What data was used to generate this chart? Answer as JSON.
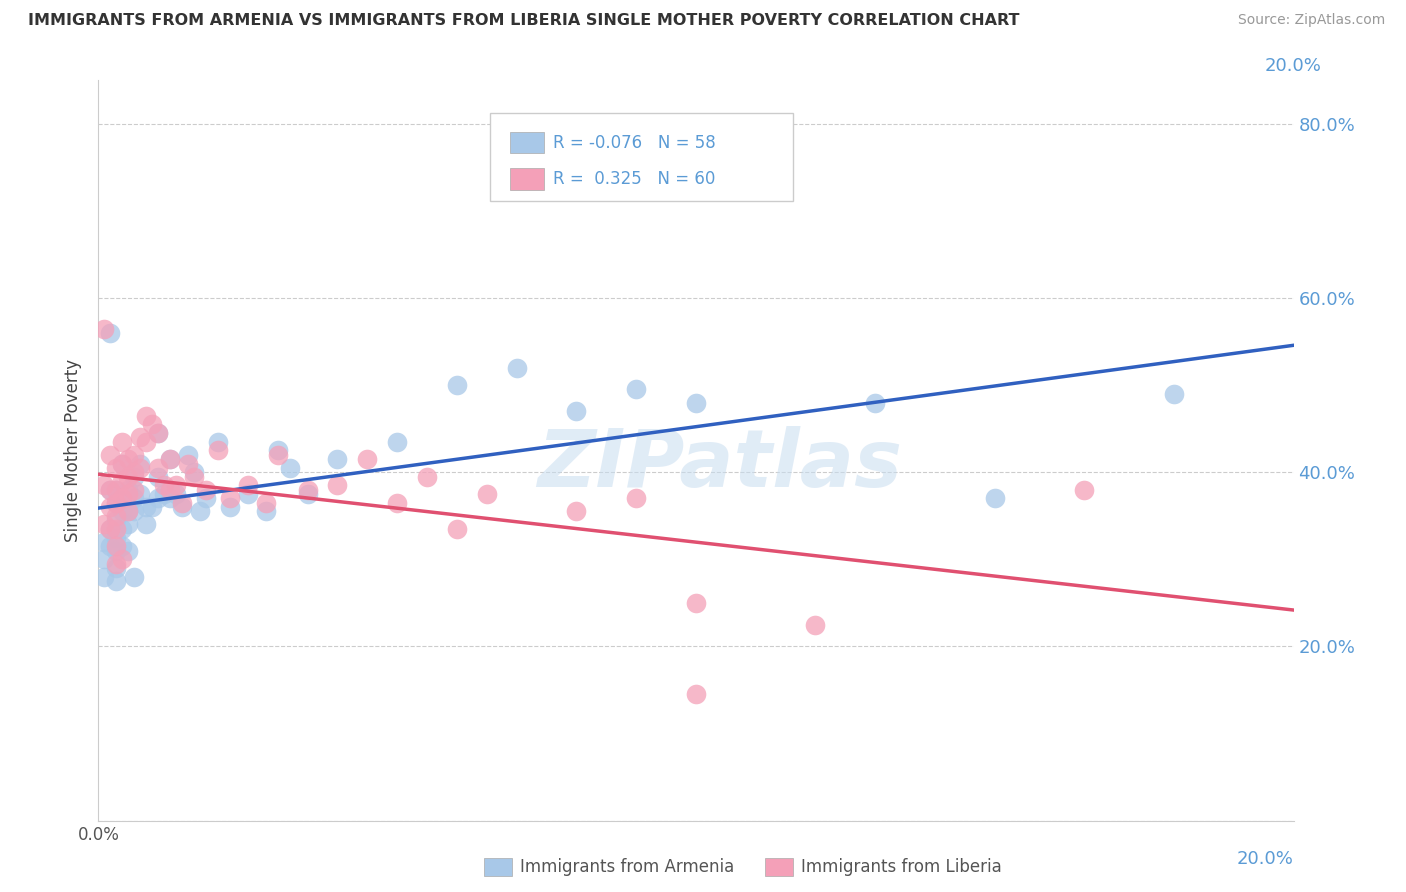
{
  "title": "IMMIGRANTS FROM ARMENIA VS IMMIGRANTS FROM LIBERIA SINGLE MOTHER POVERTY CORRELATION CHART",
  "source": "Source: ZipAtlas.com",
  "ylabel": "Single Mother Poverty",
  "armenia_color": "#a8c8e8",
  "liberia_color": "#f4a0b8",
  "armenia_line_color": "#3060c0",
  "liberia_line_color": "#e05070",
  "background_color": "#ffffff",
  "watermark": "ZIPatlas",
  "armenia_scatter": [
    [
      0.001,
      0.32
    ],
    [
      0.001,
      0.3
    ],
    [
      0.001,
      0.28
    ],
    [
      0.002,
      0.56
    ],
    [
      0.002,
      0.38
    ],
    [
      0.002,
      0.335
    ],
    [
      0.002,
      0.315
    ],
    [
      0.003,
      0.38
    ],
    [
      0.003,
      0.365
    ],
    [
      0.003,
      0.345
    ],
    [
      0.003,
      0.325
    ],
    [
      0.003,
      0.31
    ],
    [
      0.003,
      0.29
    ],
    [
      0.003,
      0.275
    ],
    [
      0.004,
      0.41
    ],
    [
      0.004,
      0.37
    ],
    [
      0.004,
      0.355
    ],
    [
      0.004,
      0.335
    ],
    [
      0.004,
      0.315
    ],
    [
      0.005,
      0.38
    ],
    [
      0.005,
      0.355
    ],
    [
      0.005,
      0.34
    ],
    [
      0.005,
      0.31
    ],
    [
      0.006,
      0.395
    ],
    [
      0.006,
      0.37
    ],
    [
      0.006,
      0.355
    ],
    [
      0.006,
      0.28
    ],
    [
      0.007,
      0.41
    ],
    [
      0.007,
      0.375
    ],
    [
      0.008,
      0.36
    ],
    [
      0.008,
      0.34
    ],
    [
      0.009,
      0.36
    ],
    [
      0.01,
      0.445
    ],
    [
      0.01,
      0.395
    ],
    [
      0.01,
      0.37
    ],
    [
      0.011,
      0.375
    ],
    [
      0.012,
      0.415
    ],
    [
      0.012,
      0.37
    ],
    [
      0.013,
      0.375
    ],
    [
      0.014,
      0.36
    ],
    [
      0.015,
      0.42
    ],
    [
      0.016,
      0.4
    ],
    [
      0.017,
      0.355
    ],
    [
      0.018,
      0.37
    ],
    [
      0.02,
      0.435
    ],
    [
      0.022,
      0.36
    ],
    [
      0.025,
      0.375
    ],
    [
      0.028,
      0.355
    ],
    [
      0.03,
      0.425
    ],
    [
      0.032,
      0.405
    ],
    [
      0.035,
      0.375
    ],
    [
      0.04,
      0.415
    ],
    [
      0.05,
      0.435
    ],
    [
      0.06,
      0.5
    ],
    [
      0.07,
      0.52
    ],
    [
      0.08,
      0.47
    ],
    [
      0.09,
      0.495
    ],
    [
      0.1,
      0.48
    ],
    [
      0.13,
      0.48
    ],
    [
      0.15,
      0.37
    ],
    [
      0.18,
      0.49
    ]
  ],
  "liberia_scatter": [
    [
      0.001,
      0.565
    ],
    [
      0.001,
      0.385
    ],
    [
      0.001,
      0.34
    ],
    [
      0.002,
      0.42
    ],
    [
      0.002,
      0.38
    ],
    [
      0.002,
      0.36
    ],
    [
      0.002,
      0.335
    ],
    [
      0.003,
      0.405
    ],
    [
      0.003,
      0.38
    ],
    [
      0.003,
      0.365
    ],
    [
      0.003,
      0.35
    ],
    [
      0.003,
      0.335
    ],
    [
      0.003,
      0.315
    ],
    [
      0.003,
      0.295
    ],
    [
      0.004,
      0.435
    ],
    [
      0.004,
      0.41
    ],
    [
      0.004,
      0.39
    ],
    [
      0.004,
      0.37
    ],
    [
      0.004,
      0.3
    ],
    [
      0.005,
      0.415
    ],
    [
      0.005,
      0.395
    ],
    [
      0.005,
      0.375
    ],
    [
      0.005,
      0.355
    ],
    [
      0.006,
      0.42
    ],
    [
      0.006,
      0.4
    ],
    [
      0.006,
      0.38
    ],
    [
      0.007,
      0.44
    ],
    [
      0.007,
      0.405
    ],
    [
      0.008,
      0.465
    ],
    [
      0.008,
      0.435
    ],
    [
      0.009,
      0.455
    ],
    [
      0.01,
      0.445
    ],
    [
      0.01,
      0.405
    ],
    [
      0.011,
      0.385
    ],
    [
      0.012,
      0.415
    ],
    [
      0.012,
      0.38
    ],
    [
      0.013,
      0.385
    ],
    [
      0.014,
      0.365
    ],
    [
      0.015,
      0.41
    ],
    [
      0.016,
      0.395
    ],
    [
      0.018,
      0.38
    ],
    [
      0.02,
      0.425
    ],
    [
      0.022,
      0.37
    ],
    [
      0.025,
      0.385
    ],
    [
      0.028,
      0.365
    ],
    [
      0.03,
      0.42
    ],
    [
      0.035,
      0.38
    ],
    [
      0.04,
      0.385
    ],
    [
      0.045,
      0.415
    ],
    [
      0.05,
      0.365
    ],
    [
      0.055,
      0.395
    ],
    [
      0.06,
      0.335
    ],
    [
      0.065,
      0.375
    ],
    [
      0.08,
      0.355
    ],
    [
      0.09,
      0.37
    ],
    [
      0.1,
      0.25
    ],
    [
      0.1,
      0.145
    ],
    [
      0.12,
      0.225
    ],
    [
      0.165,
      0.38
    ]
  ],
  "xmin": 0.0,
  "xmax": 0.2,
  "ymin": 0.0,
  "ymax": 0.85,
  "ytick_vals": [
    0.0,
    0.2,
    0.4,
    0.6,
    0.8
  ],
  "ytick_labels_right": [
    "",
    "20.0%",
    "40.0%",
    "60.0%",
    "80.0%"
  ],
  "xtick_vals": [
    0.0,
    0.2
  ],
  "xtick_labels": [
    "0.0%",
    "20.0%"
  ]
}
